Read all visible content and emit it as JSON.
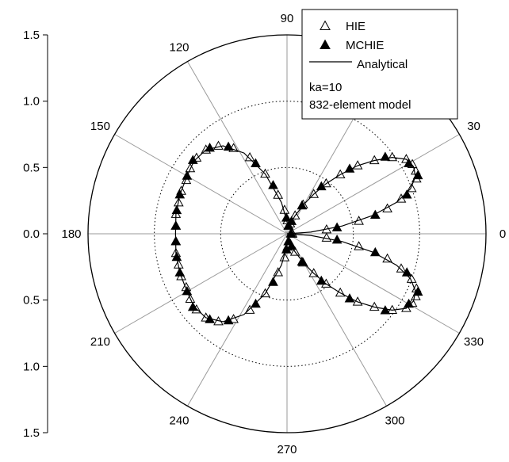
{
  "chart_data": {
    "type": "polar-scatter",
    "title": "",
    "angle_ticks": [
      "0",
      "30",
      "60",
      "90",
      "120",
      "150",
      "180",
      "210",
      "240",
      "270",
      "300",
      "330"
    ],
    "radial_axis": {
      "range": [
        0,
        1.5
      ],
      "ticks": [
        1.5,
        1.0,
        0.5,
        0.0,
        0.5,
        1.0,
        1.5
      ],
      "tick_labels": [
        "1.5",
        "1.0",
        "0.5",
        "0.0",
        "0.5",
        "1.0",
        "1.5"
      ]
    },
    "grid": true,
    "legend": {
      "position": "top-right",
      "entries": [
        "HIE",
        "MCHIE",
        "Analytical"
      ],
      "notes": [
        "ka=10",
        "832-element model"
      ]
    },
    "series": [
      {
        "name": "HIE",
        "marker": "open-triangle",
        "points": [
          [
            2,
            0.04
          ],
          [
            6,
            0.3
          ],
          [
            10,
            0.55
          ],
          [
            14,
            0.78
          ],
          [
            17,
            0.9
          ],
          [
            20,
            1.0
          ],
          [
            23,
            1.06
          ],
          [
            26,
            1.08
          ],
          [
            29,
            1.08
          ],
          [
            32,
            1.06
          ],
          [
            36,
            0.98
          ],
          [
            40,
            0.86
          ],
          [
            44,
            0.74
          ],
          [
            48,
            0.6
          ],
          [
            52,
            0.48
          ],
          [
            56,
            0.36
          ],
          [
            61,
            0.25
          ],
          [
            66,
            0.15
          ],
          [
            72,
            0.08
          ],
          [
            80,
            0.06
          ],
          [
            88,
            0.1
          ],
          [
            96,
            0.18
          ],
          [
            103,
            0.3
          ],
          [
            110,
            0.48
          ],
          [
            116,
            0.64
          ],
          [
            122,
            0.76
          ],
          [
            128,
            0.84
          ],
          [
            134,
            0.88
          ],
          [
            140,
            0.89
          ],
          [
            146,
            0.88
          ],
          [
            152,
            0.86
          ],
          [
            158,
            0.86
          ],
          [
            164,
            0.85
          ],
          [
            170,
            0.85
          ],
          [
            176,
            0.84
          ],
          [
            184,
            0.84
          ],
          [
            190,
            0.85
          ],
          [
            196,
            0.85
          ],
          [
            202,
            0.86
          ],
          [
            208,
            0.86
          ],
          [
            214,
            0.88
          ],
          [
            220,
            0.89
          ],
          [
            226,
            0.88
          ],
          [
            232,
            0.84
          ],
          [
            238,
            0.76
          ],
          [
            244,
            0.64
          ],
          [
            250,
            0.48
          ],
          [
            257,
            0.3
          ],
          [
            264,
            0.18
          ],
          [
            272,
            0.1
          ],
          [
            280,
            0.06
          ],
          [
            288,
            0.08
          ],
          [
            294,
            0.15
          ],
          [
            299,
            0.25
          ],
          [
            304,
            0.36
          ],
          [
            308,
            0.48
          ],
          [
            312,
            0.6
          ],
          [
            316,
            0.74
          ],
          [
            320,
            0.86
          ],
          [
            324,
            0.98
          ],
          [
            328,
            1.06
          ],
          [
            331,
            1.08
          ],
          [
            334,
            1.08
          ],
          [
            337,
            1.06
          ],
          [
            340,
            1.0
          ],
          [
            343,
            0.9
          ],
          [
            346,
            0.78
          ],
          [
            350,
            0.55
          ],
          [
            354,
            0.3
          ],
          [
            358,
            0.04
          ]
        ]
      },
      {
        "name": "MCHIE",
        "marker": "filled-triangle",
        "points": [
          [
            2,
            0.03
          ],
          [
            7,
            0.38
          ],
          [
            12,
            0.68
          ],
          [
            18,
            0.95
          ],
          [
            24,
            1.08
          ],
          [
            30,
            1.06
          ],
          [
            38,
            0.94
          ],
          [
            46,
            0.68
          ],
          [
            54,
            0.44
          ],
          [
            62,
            0.24
          ],
          [
            70,
            0.1
          ],
          [
            78,
            0.06
          ],
          [
            92,
            0.12
          ],
          [
            106,
            0.38
          ],
          [
            114,
            0.58
          ],
          [
            124,
            0.79
          ],
          [
            132,
            0.87
          ],
          [
            142,
            0.9
          ],
          [
            150,
            0.87
          ],
          [
            160,
            0.86
          ],
          [
            168,
            0.85
          ],
          [
            176,
            0.84
          ],
          [
            184,
            0.84
          ],
          [
            192,
            0.85
          ],
          [
            200,
            0.86
          ],
          [
            210,
            0.87
          ],
          [
            218,
            0.9
          ],
          [
            228,
            0.87
          ],
          [
            236,
            0.79
          ],
          [
            246,
            0.58
          ],
          [
            254,
            0.38
          ],
          [
            268,
            0.12
          ],
          [
            282,
            0.06
          ],
          [
            290,
            0.1
          ],
          [
            298,
            0.24
          ],
          [
            306,
            0.44
          ],
          [
            314,
            0.68
          ],
          [
            322,
            0.94
          ],
          [
            330,
            1.06
          ],
          [
            336,
            1.08
          ],
          [
            342,
            0.95
          ],
          [
            348,
            0.68
          ],
          [
            353,
            0.38
          ],
          [
            358,
            0.03
          ]
        ]
      },
      {
        "name": "Analytical",
        "marker": "line",
        "points": [
          [
            0,
            0.0
          ],
          [
            4,
            0.18
          ],
          [
            8,
            0.42
          ],
          [
            12,
            0.66
          ],
          [
            16,
            0.86
          ],
          [
            20,
            0.99
          ],
          [
            24,
            1.06
          ],
          [
            28,
            1.08
          ],
          [
            32,
            1.06
          ],
          [
            36,
            0.98
          ],
          [
            40,
            0.86
          ],
          [
            44,
            0.74
          ],
          [
            48,
            0.6
          ],
          [
            52,
            0.48
          ],
          [
            56,
            0.36
          ],
          [
            60,
            0.26
          ],
          [
            66,
            0.15
          ],
          [
            72,
            0.08
          ],
          [
            80,
            0.05
          ],
          [
            90,
            0.09
          ],
          [
            100,
            0.24
          ],
          [
            110,
            0.48
          ],
          [
            118,
            0.69
          ],
          [
            126,
            0.82
          ],
          [
            134,
            0.88
          ],
          [
            142,
            0.89
          ],
          [
            150,
            0.87
          ],
          [
            160,
            0.86
          ],
          [
            170,
            0.85
          ],
          [
            180,
            0.84
          ],
          [
            190,
            0.85
          ],
          [
            200,
            0.86
          ],
          [
            210,
            0.87
          ],
          [
            218,
            0.89
          ],
          [
            226,
            0.88
          ],
          [
            234,
            0.82
          ],
          [
            242,
            0.69
          ],
          [
            250,
            0.48
          ],
          [
            260,
            0.24
          ],
          [
            270,
            0.09
          ],
          [
            280,
            0.05
          ],
          [
            288,
            0.08
          ],
          [
            294,
            0.15
          ],
          [
            300,
            0.26
          ],
          [
            304,
            0.36
          ],
          [
            308,
            0.48
          ],
          [
            312,
            0.6
          ],
          [
            316,
            0.74
          ],
          [
            320,
            0.86
          ],
          [
            324,
            0.98
          ],
          [
            328,
            1.06
          ],
          [
            332,
            1.08
          ],
          [
            336,
            1.06
          ],
          [
            340,
            0.99
          ],
          [
            344,
            0.86
          ],
          [
            348,
            0.66
          ],
          [
            352,
            0.42
          ],
          [
            356,
            0.18
          ],
          [
            360,
            0.0
          ]
        ]
      }
    ]
  }
}
